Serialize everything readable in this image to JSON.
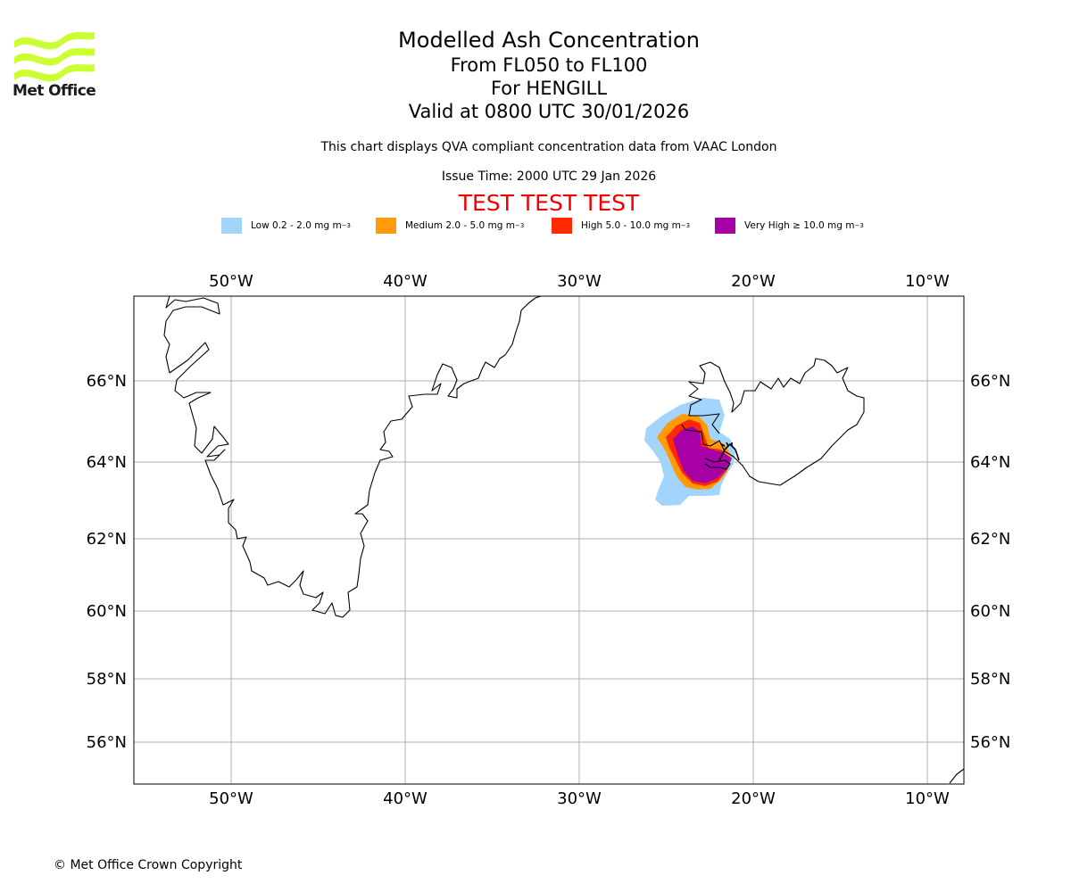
{
  "header": {
    "logo_text": "Met Office",
    "title": "Modelled Ash Concentration",
    "flight_levels": "From FL050 to FL100",
    "volcano": "For HENGILL",
    "valid_time": "Valid at 0800 UTC 30/01/2026",
    "description": "This chart displays QVA compliant concentration data from VAAC London",
    "issue_time": "Issue Time: 2000 UTC 29 Jan 2026",
    "test_banner": "TEST TEST TEST"
  },
  "legend": [
    {
      "label": "Low 0.2 - 2.0 mg m",
      "exp": "−3",
      "color": "#a3d4fb"
    },
    {
      "label": "Medium 2.0 - 5.0 mg m",
      "exp": "−3",
      "color": "#ff9b0a"
    },
    {
      "label": "High 5.0 - 10.0 mg m",
      "exp": "−3",
      "color": "#ff2a00"
    },
    {
      "label": "Very High  ≥  10.0 mg m",
      "exp": "−3",
      "color": "#a600a6"
    }
  ],
  "map": {
    "lon_labels": [
      "50°W",
      "40°W",
      "30°W",
      "20°W",
      "10°W"
    ],
    "lat_labels": [
      "66°N",
      "64°N",
      "62°N",
      "60°N",
      "58°N",
      "56°N"
    ],
    "lon_values": [
      -50,
      -40,
      -30,
      -20,
      -10
    ],
    "lat_values": [
      66,
      64,
      62,
      60,
      58,
      56
    ],
    "extent": {
      "lon_min": -55.6,
      "lon_max": -7.9,
      "lat_min": 54.9,
      "lat_max": 68.0
    }
  },
  "footer": {
    "copyright": "© Met Office Crown Copyright"
  },
  "colors": {
    "test_banner": "#ee0000",
    "logo": "#ccff33",
    "grid": "#b0b0b0"
  }
}
